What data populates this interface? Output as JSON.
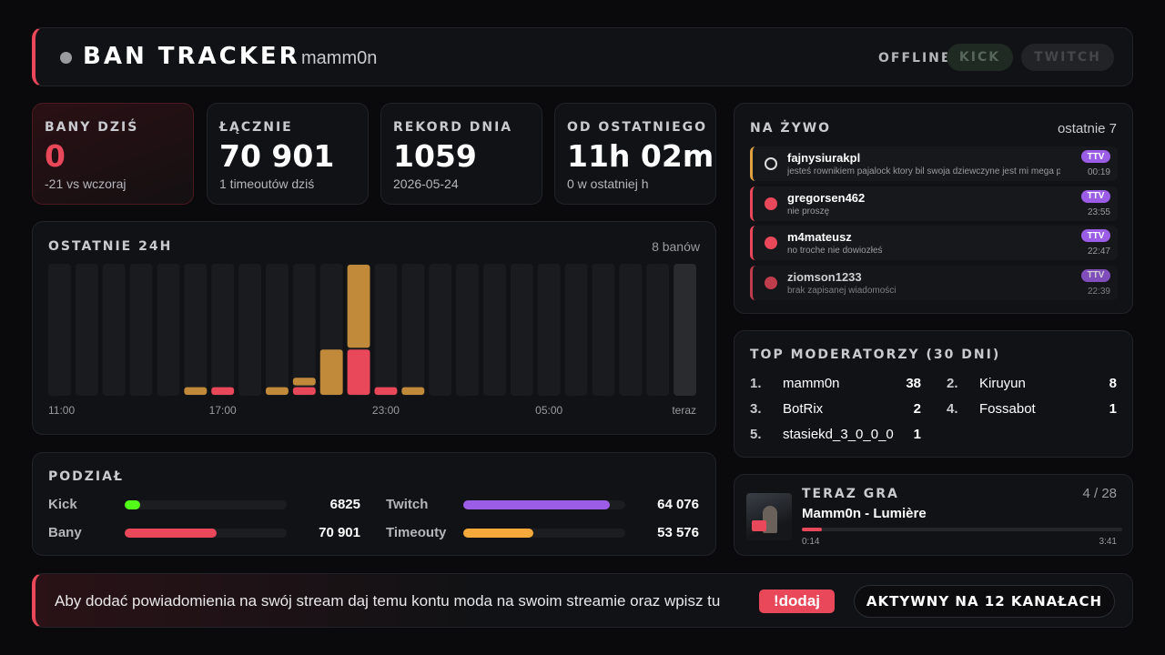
{
  "header": {
    "title": "BAN TRACKER",
    "user": "mamm0n",
    "status": "OFFLINE",
    "buttons": [
      "KICK",
      "TWITCH"
    ]
  },
  "stats": [
    {
      "label": "BANY DZIŚ",
      "value": "0",
      "sub": "-21 vs wczoraj"
    },
    {
      "label": "ŁĄCZNIE",
      "value": "70 901",
      "sub": "1 timeoutów dziś"
    },
    {
      "label": "REKORD DNIA",
      "value": "1059",
      "sub": "2026-05-24"
    },
    {
      "label": "OD OSTATNIEGO",
      "value": "11h 02m",
      "sub": "0 w ostatniej h"
    }
  ],
  "chart_data": {
    "type": "bar",
    "stacked": true,
    "title": "OSTATNIE 24H",
    "summary": "8 banów",
    "categories": [
      "11:00",
      null,
      null,
      null,
      null,
      null,
      "17:00",
      null,
      null,
      null,
      null,
      null,
      "23:00",
      null,
      null,
      null,
      null,
      null,
      "05:00",
      null,
      null,
      null,
      null,
      "teraz"
    ],
    "series": [
      {
        "color": "#e8485a",
        "values": [
          0,
          0,
          0,
          0,
          0,
          0,
          1,
          0,
          0,
          1,
          0,
          5,
          1,
          0,
          0,
          0,
          0,
          0,
          0,
          0,
          0,
          0,
          0,
          0
        ]
      },
      {
        "color": "#c08a3a",
        "values": [
          0,
          0,
          0,
          0,
          0,
          1,
          0,
          0,
          1,
          1,
          5,
          9,
          0,
          1,
          0,
          0,
          0,
          0,
          0,
          0,
          0,
          0,
          0,
          0
        ]
      }
    ]
  },
  "split": {
    "title": "PODZIAŁ",
    "groups": [
      [
        {
          "label": "Kick",
          "value": 6825,
          "color": "#53fc18"
        },
        {
          "label": "Twitch",
          "value": 64076,
          "value_label": "64 076",
          "color": "#9b5de5"
        }
      ],
      [
        {
          "label": "Bany",
          "value": 70901,
          "value_label": "70 901",
          "color": "#e8485a"
        },
        {
          "label": "Timeouty",
          "value": 53576,
          "value_label": "53 576",
          "color": "#f5a93a"
        }
      ]
    ]
  },
  "live": {
    "title": "NA ŻYWO",
    "subtitle": "ostatnie 7",
    "items": [
      {
        "kind": "timeout",
        "name": "fajnysiurakpl",
        "message": "jesteś rownikiem pajalock ktory bil swoja dziewczyne jest mi mega przykro",
        "badge": "TTV",
        "time": "00:19"
      },
      {
        "kind": "ban",
        "name": "gregorsen462",
        "message": "nie proszę",
        "badge": "TTV",
        "time": "23:55"
      },
      {
        "kind": "ban",
        "name": "m4mateusz",
        "message": "no troche nie dowiozłeś",
        "badge": "TTV",
        "time": "22:47"
      },
      {
        "kind": "ban",
        "name": "ziomson1233",
        "message": "brak zapisanej wiadomości",
        "badge": "TTV",
        "time": "22:39"
      }
    ]
  },
  "moderators": {
    "title": "TOP MODERATORZY (30 DNI)",
    "rows": [
      {
        "rank": "1.",
        "name": "mamm0n",
        "count": 38
      },
      {
        "rank": "2.",
        "name": "Kiruyun",
        "count": 8
      },
      {
        "rank": "3.",
        "name": "BotRix",
        "count": 2
      },
      {
        "rank": "4.",
        "name": "Fossabot",
        "count": 1
      },
      {
        "rank": "5.",
        "name": "stasiekd_3_0_0_0",
        "count": 1
      }
    ]
  },
  "player": {
    "title": "TERAZ GRA",
    "position": "4 / 28",
    "song": "Mamm0n - Lumière",
    "elapsed": "0:14",
    "duration": "3:41"
  },
  "footer": {
    "text": "Aby dodać powiadomienia na swój stream daj temu kontu moda na swoim streamie oraz wpisz tu",
    "command": "!dodaj",
    "badge": "AKTYWNY NA 12 KANAŁACH"
  }
}
